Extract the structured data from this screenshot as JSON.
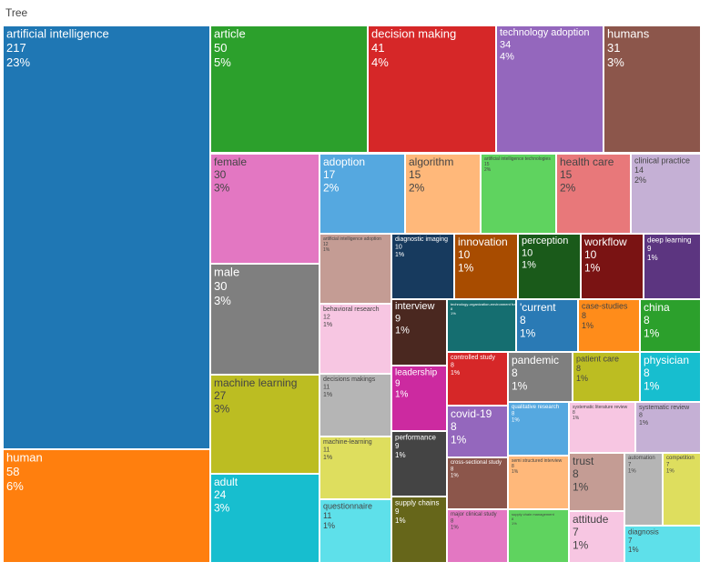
{
  "chart_data": {
    "type": "treemap",
    "title": "Tree",
    "categories": [
      "artificial intelligence",
      "human",
      "article",
      "decision making",
      "technology adoption",
      "humans",
      "female",
      "male",
      "machine learning",
      "adult",
      "adoption",
      "algorithm",
      "artificial intelligence technologies",
      "health care",
      "clinical practice",
      "artificial intelligence adoption",
      "behavioral research",
      "decisions makings",
      "machine-learning",
      "questionnaire",
      "diagnostic imaging",
      "innovation",
      "perception",
      "workflow",
      "deep learning",
      "interview",
      "technology-organization-environment framework",
      "'current",
      "case-studies",
      "china",
      "leadership",
      "controlled study",
      "pandemic",
      "patient care",
      "physician",
      "performance",
      "supply chains",
      "covid-19",
      "qualitative research",
      "systematic literature review",
      "systematic review",
      "cross-sectional study",
      "semi structured interview",
      "trust",
      "automation",
      "competition",
      "major clinical study",
      "supply chain management",
      "attitude",
      "diagnosis"
    ],
    "values": [
      217,
      58,
      50,
      41,
      34,
      31,
      30,
      30,
      27,
      24,
      17,
      15,
      15,
      15,
      14,
      12,
      12,
      11,
      11,
      11,
      10,
      10,
      10,
      10,
      9,
      9,
      8,
      8,
      8,
      8,
      9,
      8,
      8,
      8,
      8,
      9,
      9,
      8,
      8,
      8,
      8,
      8,
      8,
      8,
      7,
      7,
      8,
      8,
      7,
      7
    ],
    "shares": [
      23,
      6,
      5,
      4,
      4,
      3,
      3,
      3,
      3,
      3,
      2,
      2,
      2,
      2,
      2,
      1,
      1,
      1,
      1,
      1,
      1,
      1,
      1,
      1,
      1,
      1,
      1,
      1,
      1,
      1,
      1,
      1,
      1,
      1,
      1,
      1,
      1,
      1,
      1,
      1,
      1,
      1,
      1,
      1,
      1,
      1,
      1,
      1,
      1,
      1
    ],
    "share_labels": [
      "23%",
      "6%",
      "5%",
      "4%",
      "4%",
      "3%",
      "3%",
      "3%",
      "3%",
      "3%",
      "2%",
      "2%",
      "2%",
      "2%",
      "2%",
      "1%",
      "1%",
      "1%",
      "1%",
      "1%",
      "1%",
      "1%",
      "1%",
      "1%",
      "1%",
      "1%",
      "1%",
      "1%",
      "1%",
      "1%",
      "1%",
      "1%",
      "1%",
      "1%",
      "1%",
      "1%",
      "1%",
      "1%",
      "1%",
      "1%",
      "1%",
      "1%",
      "1%",
      "1%",
      "1%",
      "1%",
      "1%",
      "1%",
      "1%",
      "1%"
    ],
    "colors": [
      "#1f77b4",
      "#ff7f0e",
      "#2ca02c",
      "#d62728",
      "#9467bd",
      "#8c564b",
      "#e377c2",
      "#7f7f7f",
      "#bcbd22",
      "#17becf",
      "#55a8e0",
      "#ffb87a",
      "#5fd35f",
      "#e8787a",
      "#c5b0d5",
      "#c49c94",
      "#f7c6e2",
      "#b5b5b5",
      "#dede5e",
      "#5ee0ea",
      "#173a5e",
      "#a84c00",
      "#1a5a1a",
      "#7a1313",
      "#5c3580",
      "#4a2820",
      "#156e70",
      "#2a7ab5",
      "#ff8c1a",
      "#2ca02c",
      "#cc2aa0",
      "#d62728",
      "#7f7f7f",
      "#bcbd22",
      "#17becf",
      "#444444",
      "#66661a",
      "#9467bd",
      "#55a8e0",
      "#f7c6e2",
      "#c5b0d5",
      "#8c564b",
      "#ffb87a",
      "#c49c94",
      "#b5b5b5",
      "#dede5e",
      "#e377c2",
      "#5fd35f",
      "#f7c6e2",
      "#5ee0ea"
    ]
  }
}
